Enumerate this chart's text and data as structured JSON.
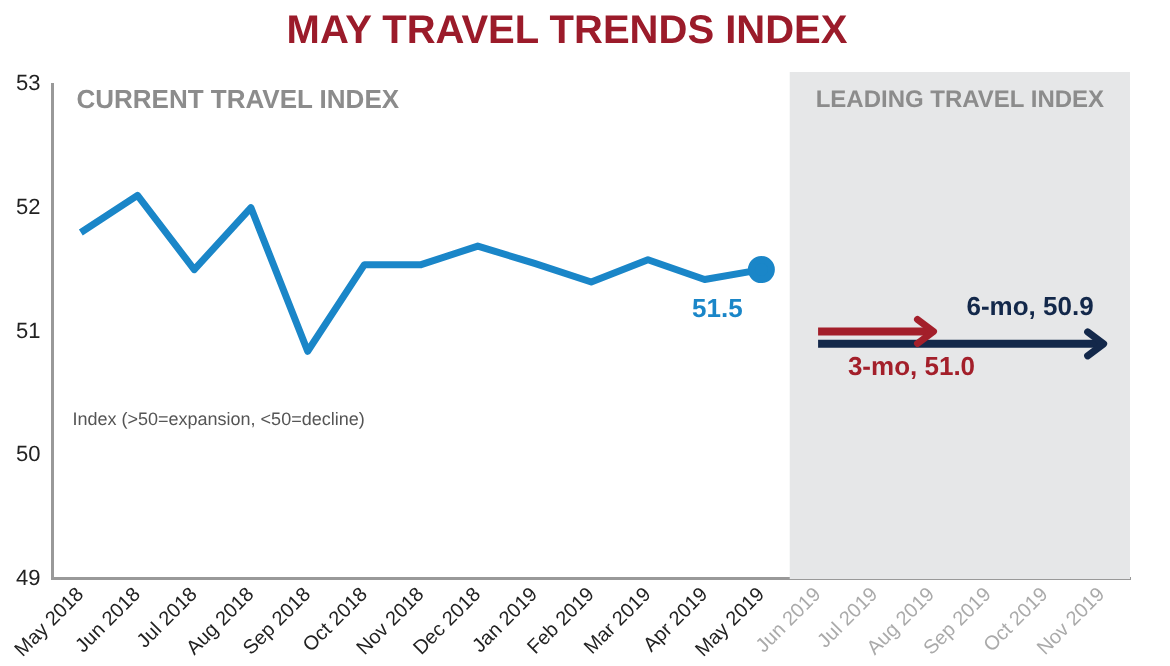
{
  "chart_data": {
    "type": "line",
    "title": "MAY TRAVEL TRENDS INDEX",
    "categories": [
      "May 2018",
      "Jun 2018",
      "Jul 2018",
      "Aug 2018",
      "Sep 2018",
      "Oct 2018",
      "Nov 2018",
      "Dec 2018",
      "Jan 2019",
      "Feb 2019",
      "Mar 2019",
      "Apr 2019",
      "May 2019",
      "Jun 2019",
      "Jul 2019",
      "Aug 2019",
      "Sep 2019",
      "Oct 2019",
      "Nov 2019"
    ],
    "series": [
      {
        "color": "#1a86c8",
        "values": [
          51.8,
          52.1,
          51.5,
          52.0,
          50.84,
          51.54,
          51.54,
          51.69,
          51.55,
          51.4,
          51.58,
          51.42,
          51.5,
          null,
          null,
          null,
          null,
          null,
          null
        ],
        "value_labels": [
          null,
          null,
          null,
          null,
          null,
          null,
          null,
          null,
          null,
          null,
          null,
          null,
          "51.5",
          null,
          null,
          null,
          null,
          null,
          null
        ]
      },
      {
        "color": "#13284a",
        "values": [
          null,
          null,
          null,
          null,
          null,
          null,
          null,
          null,
          null,
          null,
          null,
          null,
          null,
          50.9,
          50.9,
          50.9,
          50.9,
          50.9,
          50.9
        ],
        "value_labels": [
          null,
          null,
          null,
          null,
          null,
          null,
          null,
          null,
          null,
          null,
          null,
          null,
          null,
          null,
          null,
          null,
          null,
          null,
          "6-mo, 50.9"
        ]
      },
      {
        "color": "#a31f2a",
        "values": [
          null,
          null,
          null,
          null,
          null,
          null,
          null,
          null,
          null,
          null,
          null,
          null,
          null,
          51.0,
          51.0,
          51.0,
          null,
          null,
          null
        ],
        "value_labels": [
          null,
          null,
          null,
          null,
          null,
          null,
          null,
          null,
          null,
          null,
          null,
          null,
          null,
          null,
          null,
          "3-mo, 51.0",
          null,
          null,
          null
        ]
      }
    ],
    "ylim": [
      49,
      53
    ],
    "yticks": [
      49,
      50,
      51,
      52,
      53
    ],
    "grid": false,
    "legend": false,
    "bands": [
      {
        "axis": "x",
        "from": "Jun 2019",
        "to": "Nov 2019",
        "label": "LEADING TRAVEL INDEX",
        "color": "#e6e7e8"
      }
    ],
    "annotations": [
      "CURRENT TRAVEL INDEX",
      "Index (>50=expansion, <50=decline)"
    ]
  }
}
